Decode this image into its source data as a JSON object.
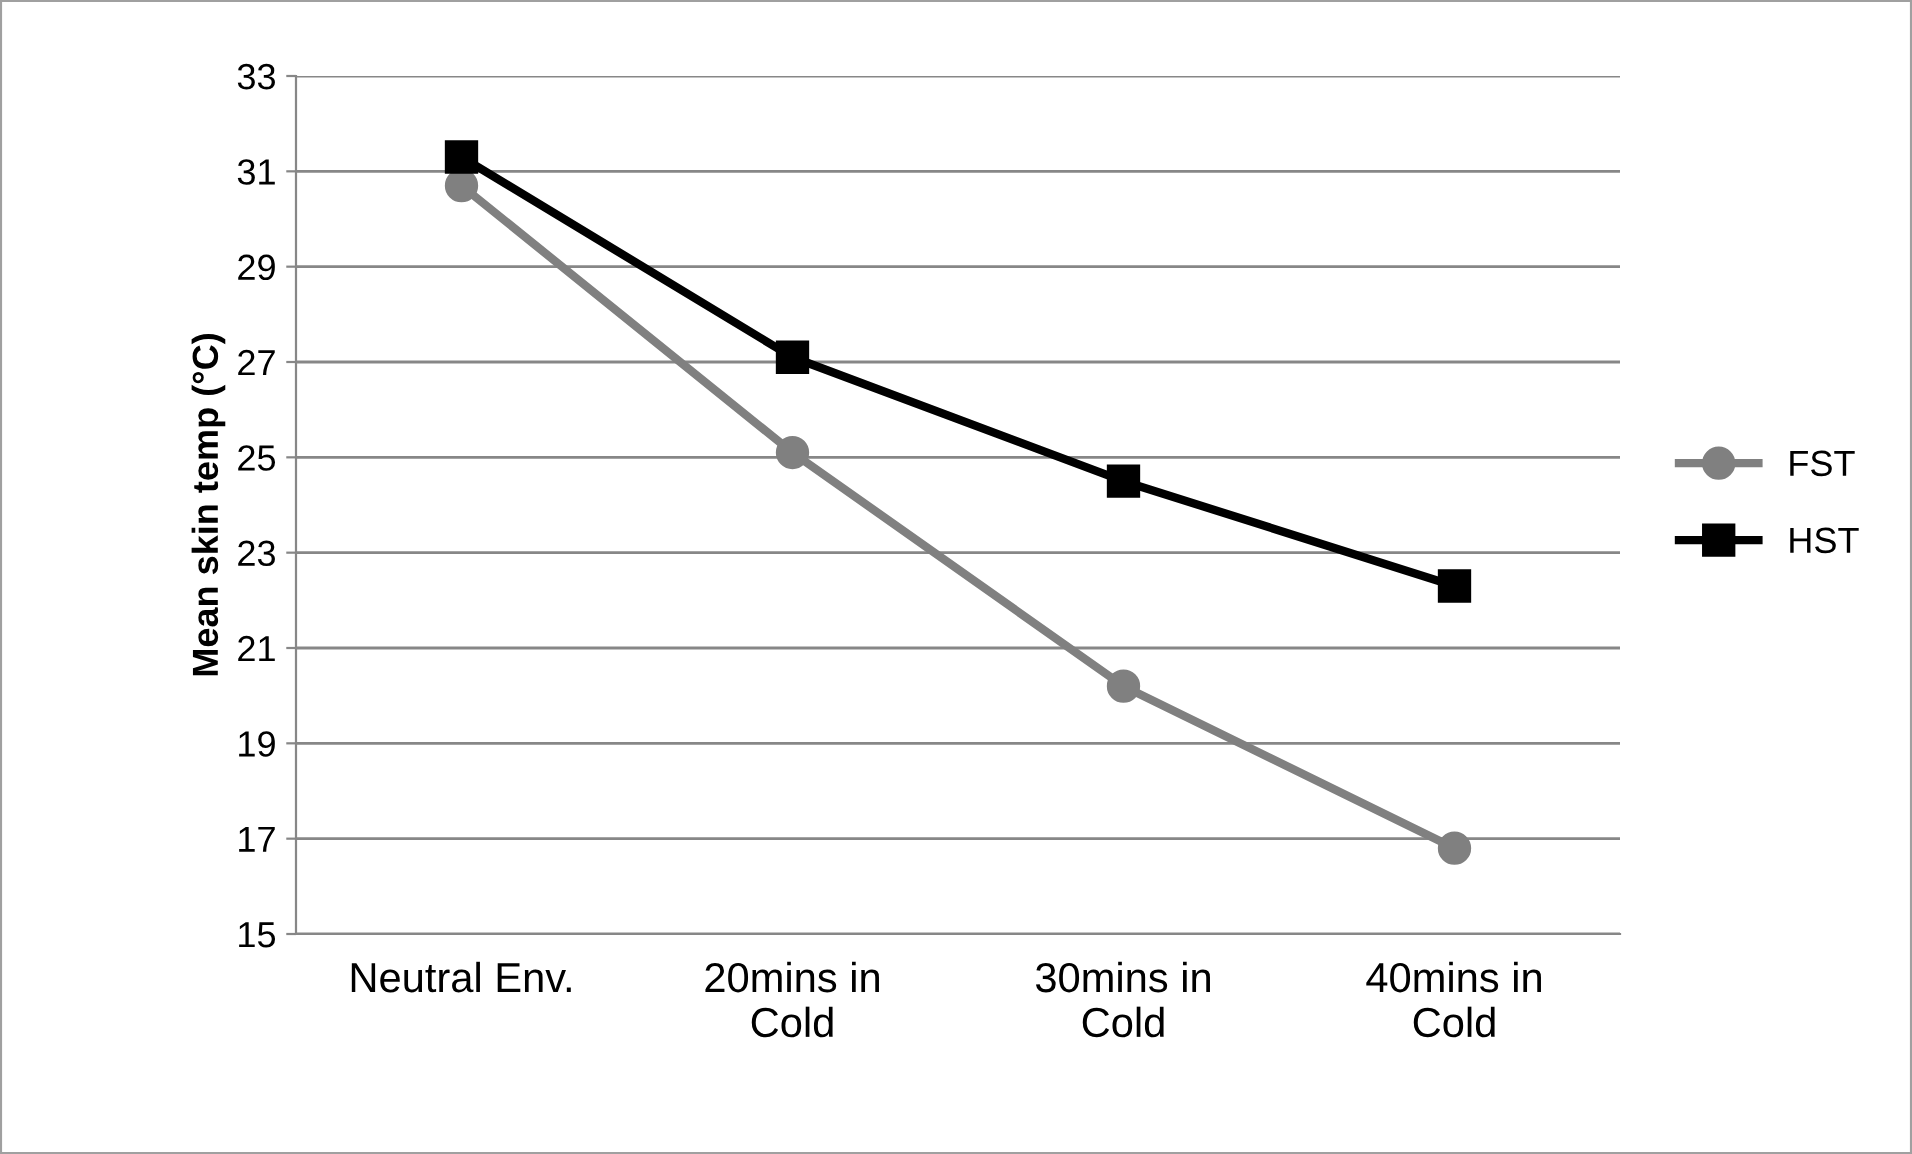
{
  "chart_data": {
    "type": "line",
    "ylabel": "Mean skin temp (°C)",
    "categories": [
      "Neutral Env.",
      "20mins in\nCold",
      "30mins in\nCold",
      "40mins in\nCold"
    ],
    "series": [
      {
        "name": "FST",
        "color": "#808080",
        "marker": "circle",
        "values": [
          30.7,
          25.1,
          20.2,
          16.8
        ]
      },
      {
        "name": "HST",
        "color": "#000000",
        "marker": "square",
        "values": [
          31.3,
          27.1,
          24.5,
          22.3
        ]
      }
    ],
    "ylim": [
      15,
      33
    ],
    "yticks": [
      15,
      17,
      19,
      21,
      23,
      25,
      27,
      29,
      31,
      33
    ],
    "grid": "y",
    "legend": "right",
    "line_style": "solid"
  }
}
